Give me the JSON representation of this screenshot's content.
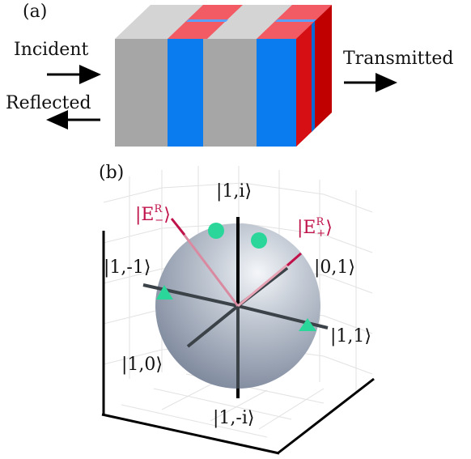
{
  "panel_a": {
    "label": "(a)",
    "incident": "Incident",
    "reflected": "Reflected",
    "transmitted": "Transmitted"
  },
  "panel_b": {
    "label": "(b)",
    "axis_top": "|1,i⟩",
    "axis_bottom": "|1,-i⟩",
    "axis_left": "|1,-1⟩",
    "axis_right": "|1,1⟩",
    "axis_front": "|1,0⟩",
    "axis_back": "|0,1⟩",
    "e_minus_base": "|E",
    "e_minus_sup": "R",
    "e_minus_sub": "−",
    "e_plus_base": "|E",
    "e_plus_sup": "R",
    "e_plus_sub": "+",
    "ket_close": "⟩"
  },
  "colors": {
    "gray_layer": "#a6a6a6",
    "gray_top": "#d4d4d4",
    "blue_layer": "#0a7cf0",
    "blue_top": "#f25a64",
    "red_side": "#c00000",
    "sphere": "#a9b3c2",
    "marker": "#2bd69a",
    "state_line": "#c0124a"
  }
}
